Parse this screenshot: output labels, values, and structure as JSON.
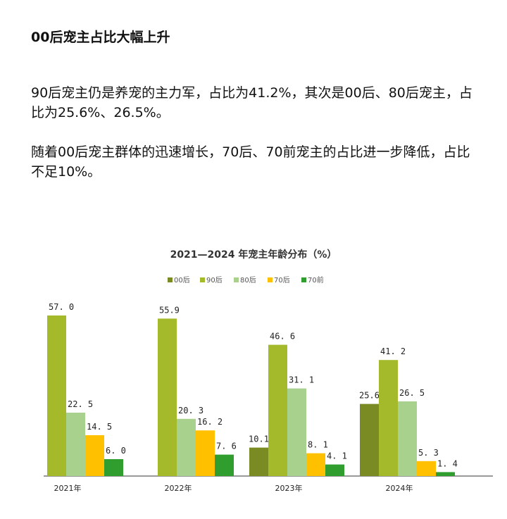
{
  "heading": "00后宠主占比大幅上升",
  "paragraphs": [
    "90后宠主仍是养宠的主力军，占比为41.2%，其次是00后、80后宠主，占比为25.6%、26.5%。",
    "随着00后宠主群体的迅速增长，70后、70前宠主的占比进一步降低，占比不足10%。"
  ],
  "chart_data": {
    "type": "bar",
    "title": "2021—2024 年宠主年龄分布（%）",
    "categories": [
      "2021年",
      "2022年",
      "2023年",
      "2024年"
    ],
    "legend_position": "top",
    "grid": false,
    "ylim": [
      0,
      60
    ],
    "series": [
      {
        "name": "00后",
        "color": "#7b8b23",
        "values": [
          null,
          null,
          10.1,
          25.6
        ],
        "labels": [
          "",
          "",
          "10.1",
          "25.6"
        ]
      },
      {
        "name": "90后",
        "color": "#a5ba2b",
        "values": [
          57.0,
          55.9,
          46.6,
          41.2
        ],
        "labels": [
          "57. 0",
          "55.9",
          "46. 6",
          "41. 2"
        ]
      },
      {
        "name": "80后",
        "color": "#a9d18e",
        "values": [
          22.5,
          20.3,
          31.1,
          26.5
        ],
        "labels": [
          "22. 5",
          "20. 3",
          "31. 1",
          "26. 5"
        ]
      },
      {
        "name": "70后",
        "color": "#ffc000",
        "values": [
          14.5,
          16.2,
          8.1,
          5.3
        ],
        "labels": [
          "14. 5",
          "16. 2",
          "8. 1",
          "5. 3"
        ]
      },
      {
        "name": "70前",
        "color": "#2f9e2f",
        "values": [
          6.0,
          7.6,
          4.1,
          1.4
        ],
        "labels": [
          "6. 0",
          "7. 6",
          "4. 1",
          "1. 4"
        ]
      }
    ]
  }
}
